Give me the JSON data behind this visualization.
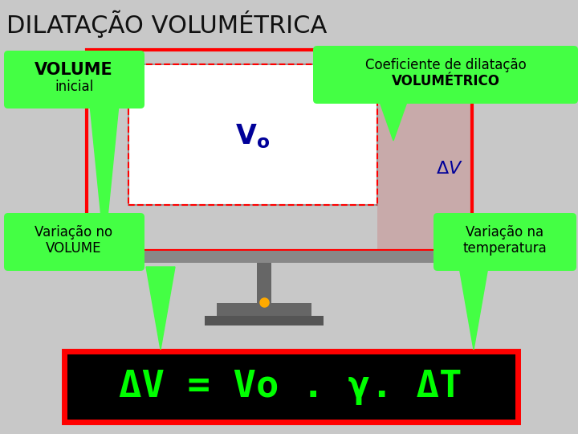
{
  "title": "DILATAÇÃO VOLUMÉTRICA",
  "title_fontsize": 22,
  "title_color": "#111111",
  "bg_color": "#c8c8c8",
  "label_volume": "VOLUME",
  "label_inicial": "inicial",
  "label_coef_line1": "Coeficiente de dilatação",
  "label_coef_line2": "VOLUMÉTRICO",
  "label_variacao_vol_line1": "Variação no",
  "label_variacao_vol_line2": "VOLUME",
  "label_variacao_temp_line1": "Variação na",
  "label_variacao_temp_line2": "temperatura",
  "formula": "ΔV = Vo . γ. ΔT",
  "formula_color": "#00ff00",
  "formula_bg": "#000000",
  "formula_border": "#ff0000",
  "callout_bg": "#44ff44",
  "callout_border": "#228822",
  "green_arrow": "#33ee33"
}
